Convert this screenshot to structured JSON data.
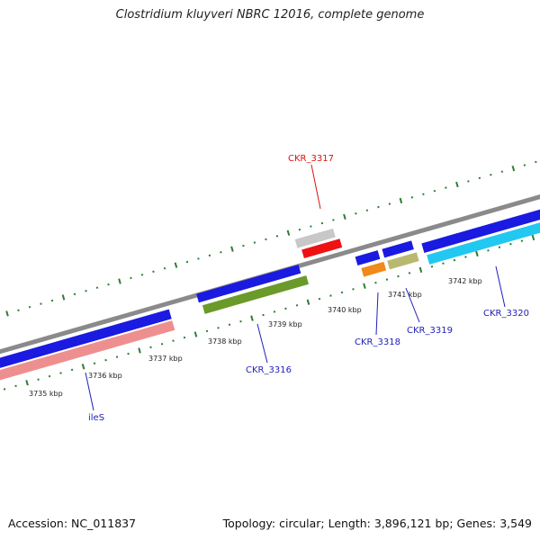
{
  "title": "Clostridium kluyveri NBRC 12016, complete genome",
  "footer": {
    "accession": "Accession: NC_011837",
    "summary": "Topology: circular; Length: 3,896,121 bp; Genes: 3,549"
  },
  "colors": {
    "backbone": "#8a8a8a",
    "tick": "#2e7d32",
    "label_blue": "#1f1fb8",
    "label_red": "#e01010"
  },
  "scale_labels": [
    "3735 kbp",
    "3736 kbp",
    "3737 kbp",
    "3738 kbp",
    "3739 kbp",
    "3740 kbp",
    "3741 kbp",
    "3742 kbp"
  ],
  "gene_labels": {
    "ckr3317": "CKR_3317",
    "ckr3316": "CKR_3316",
    "ckr3318": "CKR_3318",
    "ckr3319": "CKR_3319",
    "ckr3320": "CKR_3320",
    "iles": "ileS"
  }
}
